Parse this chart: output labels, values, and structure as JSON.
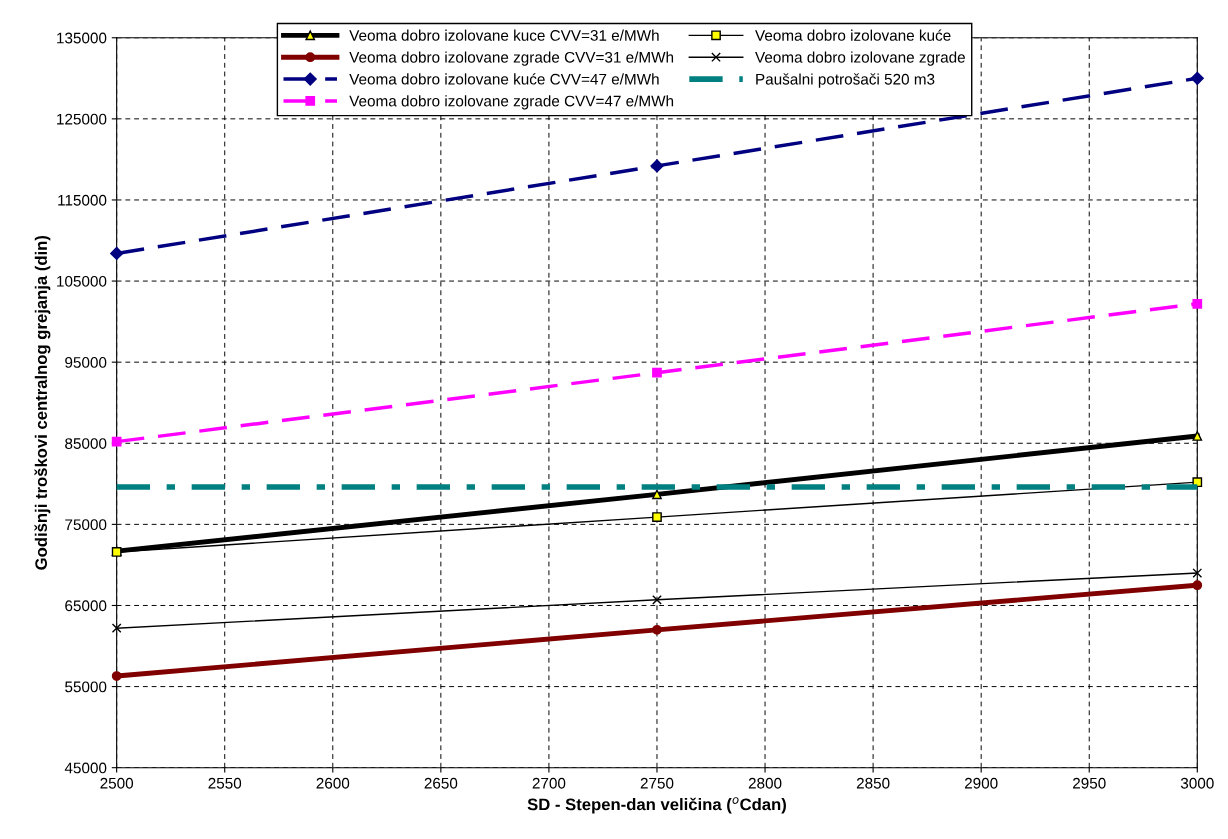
{
  "chart_data": {
    "type": "line",
    "xlabel": "SD - Stepen-dan veličina ($^{o}$Cdan)",
    "ylabel": "Godišnji troškovi centralnog grejanja (din)",
    "x": [
      2500,
      2750,
      3000
    ],
    "series": [
      {
        "name": "Veoma dobro izolovane kuce CVV=31 e/MWh",
        "color": "#000000",
        "values": [
          71700,
          78700,
          85900
        ],
        "marker": "triangle",
        "line_style": "solid"
      },
      {
        "name": "Veoma dobro izolovane zgrade CVV=31 e/MWh",
        "color": "#800000",
        "values": [
          56300,
          62000,
          67500
        ],
        "marker": "circle",
        "line_style": "solid"
      },
      {
        "name": "Veoma dobro izolovane kuće CVV=47 e/MWh",
        "color": "#000080",
        "values": [
          108400,
          119200,
          130000
        ],
        "marker": "diamond",
        "line_style": "dashed"
      },
      {
        "name": "Veoma dobro izolovane zgrade CVV=47 e/MWh",
        "color": "#ff00ff",
        "values": [
          85200,
          93700,
          102200
        ],
        "marker": "square",
        "line_style": "dashed"
      },
      {
        "name": "Veoma dobro izolovane kuće",
        "color": "#000000",
        "values": [
          71600,
          75900,
          80200
        ],
        "marker": "square",
        "line_style": "solid"
      },
      {
        "name": "Veoma dobro izolovane zgrade",
        "color": "#000000",
        "values": [
          62200,
          65700,
          69000
        ],
        "marker": "cross",
        "line_style": "solid"
      },
      {
        "name": "Paušalni potrošači 520 m3",
        "color": "#008080",
        "values": [
          79600,
          79600,
          79600
        ],
        "marker": "none",
        "line_style": "dashed"
      }
    ],
    "xlim": [
      2500,
      3000
    ],
    "xticks": [
      2500,
      2550,
      2600,
      2650,
      2700,
      2750,
      2800,
      2850,
      2900,
      2950,
      3000
    ],
    "ylim": [
      45000,
      135000
    ],
    "yticks": [
      45000,
      55000,
      65000,
      75000,
      85000,
      95000,
      105000,
      115000,
      125000,
      135000
    ],
    "grid": true,
    "legend": "top"
  }
}
